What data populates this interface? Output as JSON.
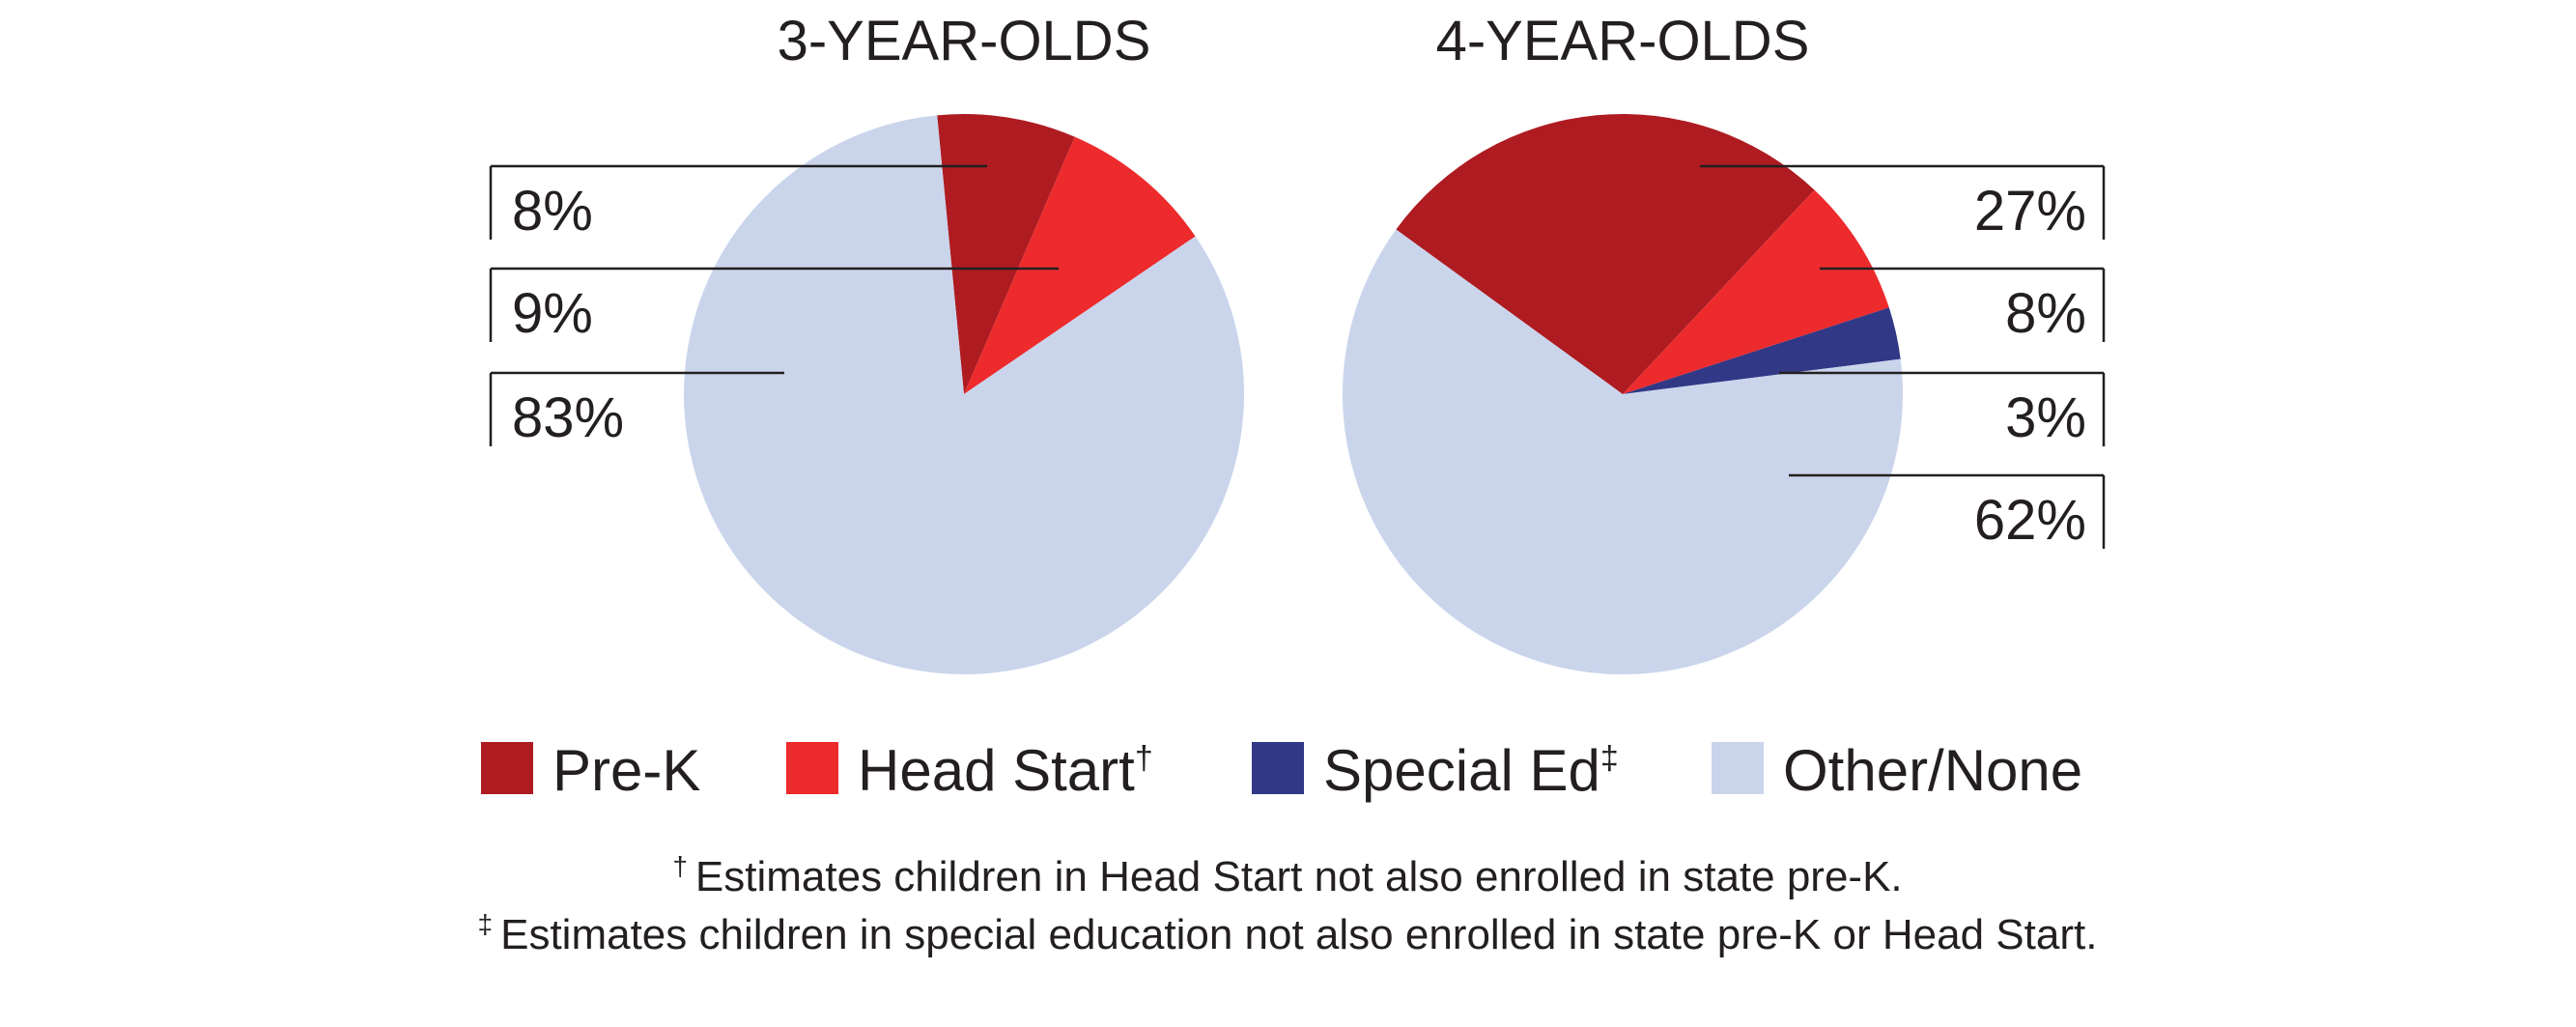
{
  "chart_data": [
    {
      "type": "pie",
      "title": "3-YEAR-OLDS",
      "slices": [
        {
          "label": "Pre-K",
          "value": 8,
          "display": "8%"
        },
        {
          "label": "Head Start",
          "value": 9,
          "display": "9%"
        },
        {
          "label": "Other/None",
          "value": 83,
          "display": "83%"
        }
      ]
    },
    {
      "type": "pie",
      "title": "4-YEAR-OLDS",
      "slices": [
        {
          "label": "Pre-K",
          "value": 27,
          "display": "27%"
        },
        {
          "label": "Head Start",
          "value": 8,
          "display": "8%"
        },
        {
          "label": "Special Ed",
          "value": 3,
          "display": "3%"
        },
        {
          "label": "Other/None",
          "value": 62,
          "display": "62%"
        }
      ]
    }
  ],
  "legend": [
    {
      "label": "Pre-K",
      "mark": "",
      "color": "#ae1c22"
    },
    {
      "label": "Head Start",
      "mark": "†",
      "color": "#ed2b2d"
    },
    {
      "label": "Special Ed",
      "mark": "‡",
      "color": "#313886"
    },
    {
      "label": "Other/None",
      "mark": "",
      "color": "#cad5ec"
    }
  ],
  "colors": {
    "Pre-K": "#ae1c22",
    "Head Start": "#ed2b2d",
    "Special Ed": "#313886",
    "Other/None": "#cad5ec"
  },
  "footnotes": [
    {
      "symbol": "†",
      "text": "Estimates children in Head Start not also enrolled in state pre-K."
    },
    {
      "symbol": "‡",
      "text": "Estimates children in special education not also enrolled in state pre-K or Head Start."
    }
  ]
}
